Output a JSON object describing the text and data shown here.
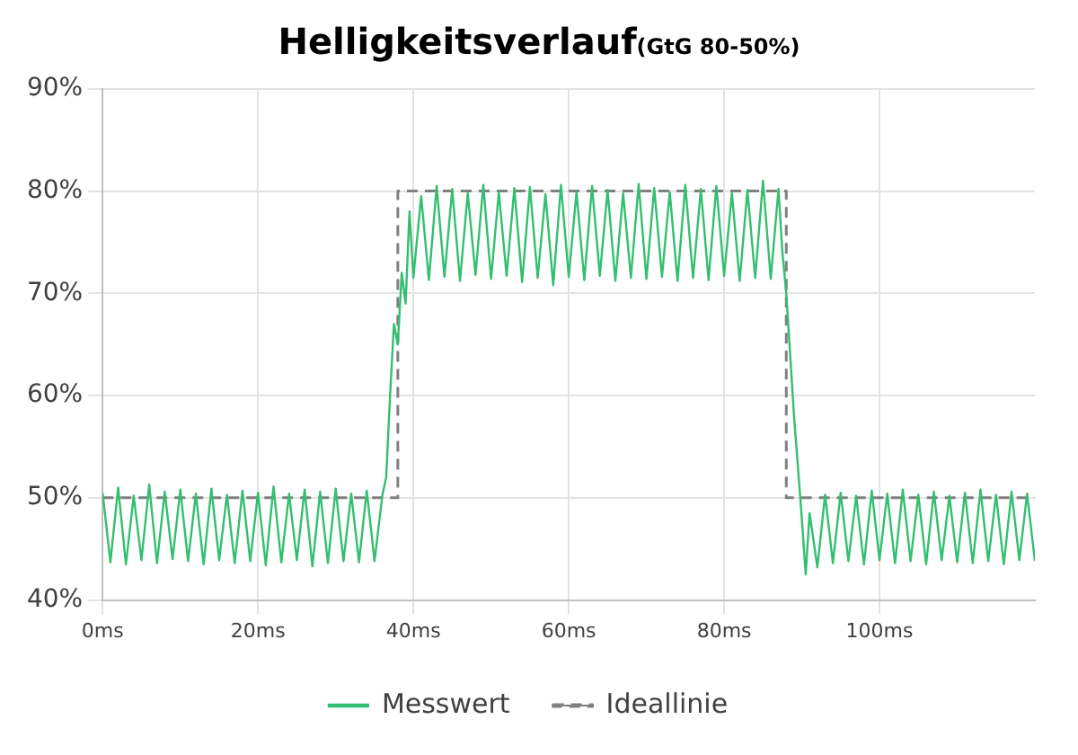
{
  "chart_data": {
    "type": "line",
    "title": "Helligkeitsverlauf",
    "subtitle": "(GtG 80-50%)",
    "xlim": [
      0,
      120
    ],
    "xticks": [
      {
        "value": 0,
        "label": "0ms"
      },
      {
        "value": 20,
        "label": "20ms"
      },
      {
        "value": 40,
        "label": "40ms"
      },
      {
        "value": 60,
        "label": "60ms"
      },
      {
        "value": 80,
        "label": "80ms"
      },
      {
        "value": 100,
        "label": "100ms"
      }
    ],
    "ylim": [
      40,
      90
    ],
    "yticks": [
      {
        "value": 40,
        "label": "40%"
      },
      {
        "value": 50,
        "label": "50%"
      },
      {
        "value": 60,
        "label": "60%"
      },
      {
        "value": 70,
        "label": "70%"
      },
      {
        "value": 80,
        "label": "80%"
      },
      {
        "value": 90,
        "label": "90%"
      }
    ],
    "grid": true,
    "legend": "bottom",
    "marker": "none",
    "series": [
      {
        "name": "Messwert",
        "color": "#33bf70",
        "line_style": "solid",
        "x": [
          0,
          1,
          2,
          3,
          4,
          5,
          6,
          7,
          8,
          9,
          10,
          11,
          12,
          13,
          14,
          15,
          16,
          17,
          18,
          19,
          20,
          21,
          22,
          23,
          24,
          25,
          26,
          27,
          28,
          29,
          30,
          31,
          32,
          33,
          34,
          35,
          36,
          36.5,
          37,
          37.5,
          38,
          38.5,
          39,
          39.5,
          40,
          41,
          42,
          43,
          44,
          45,
          46,
          47,
          48,
          49,
          50,
          51,
          52,
          53,
          54,
          55,
          56,
          57,
          58,
          59,
          60,
          61,
          62,
          63,
          64,
          65,
          66,
          67,
          68,
          69,
          70,
          71,
          72,
          73,
          74,
          75,
          76,
          77,
          78,
          79,
          80,
          81,
          82,
          83,
          84,
          85,
          86,
          87,
          87.5,
          88,
          88.5,
          89,
          89.5,
          90,
          90.5,
          91,
          92,
          93,
          94,
          95,
          96,
          97,
          98,
          99,
          100,
          101,
          102,
          103,
          104,
          105,
          106,
          107,
          108,
          109,
          110,
          111,
          112,
          113,
          114,
          115,
          116,
          117,
          118,
          119,
          120
        ],
        "values": [
          50.5,
          43.7,
          51,
          43.5,
          50.2,
          43.9,
          51.3,
          43.6,
          50.6,
          44,
          50.8,
          43.8,
          50.4,
          43.5,
          50.9,
          43.9,
          50.3,
          43.6,
          50.7,
          43.8,
          50.5,
          43.4,
          51.1,
          43.7,
          50.4,
          43.9,
          50.8,
          43.3,
          50.6,
          43.6,
          50.9,
          43.8,
          50.4,
          43.7,
          50.7,
          43.8,
          50.2,
          52,
          60,
          67,
          65,
          72,
          69,
          78,
          71.5,
          79.5,
          71.3,
          80.5,
          71.6,
          80.2,
          71.2,
          79.8,
          71.8,
          80.6,
          71.4,
          79.9,
          71.7,
          80.3,
          71.1,
          80.4,
          71.5,
          79.7,
          70.8,
          80.6,
          71.6,
          79.9,
          71.3,
          80.5,
          71.7,
          80.1,
          71.2,
          79.8,
          71.5,
          80.7,
          71.4,
          80.3,
          71.6,
          79.9,
          71.2,
          80.6,
          71.5,
          80.2,
          71.3,
          80.5,
          71.7,
          79.8,
          71.2,
          80.1,
          71.5,
          81,
          71.4,
          80.2,
          74,
          70,
          64,
          58,
          53,
          48,
          42.5,
          48.5,
          43.2,
          50.3,
          43.6,
          50.5,
          43.8,
          50.2,
          43.5,
          50.7,
          43.9,
          50.4,
          43.6,
          50.8,
          43.8,
          50.3,
          43.5,
          50.6,
          43.9,
          50.2,
          43.7,
          50.5,
          43.6,
          50.8,
          43.8,
          50.3,
          43.5,
          50.6,
          43.9,
          50.4,
          43.8
        ]
      },
      {
        "name": "Ideallinie",
        "color": "#7f7f7f",
        "line_style": "dashed",
        "x": [
          0,
          38,
          38,
          88,
          88,
          120
        ],
        "values": [
          50,
          50,
          80,
          80,
          50,
          50
        ]
      }
    ]
  }
}
